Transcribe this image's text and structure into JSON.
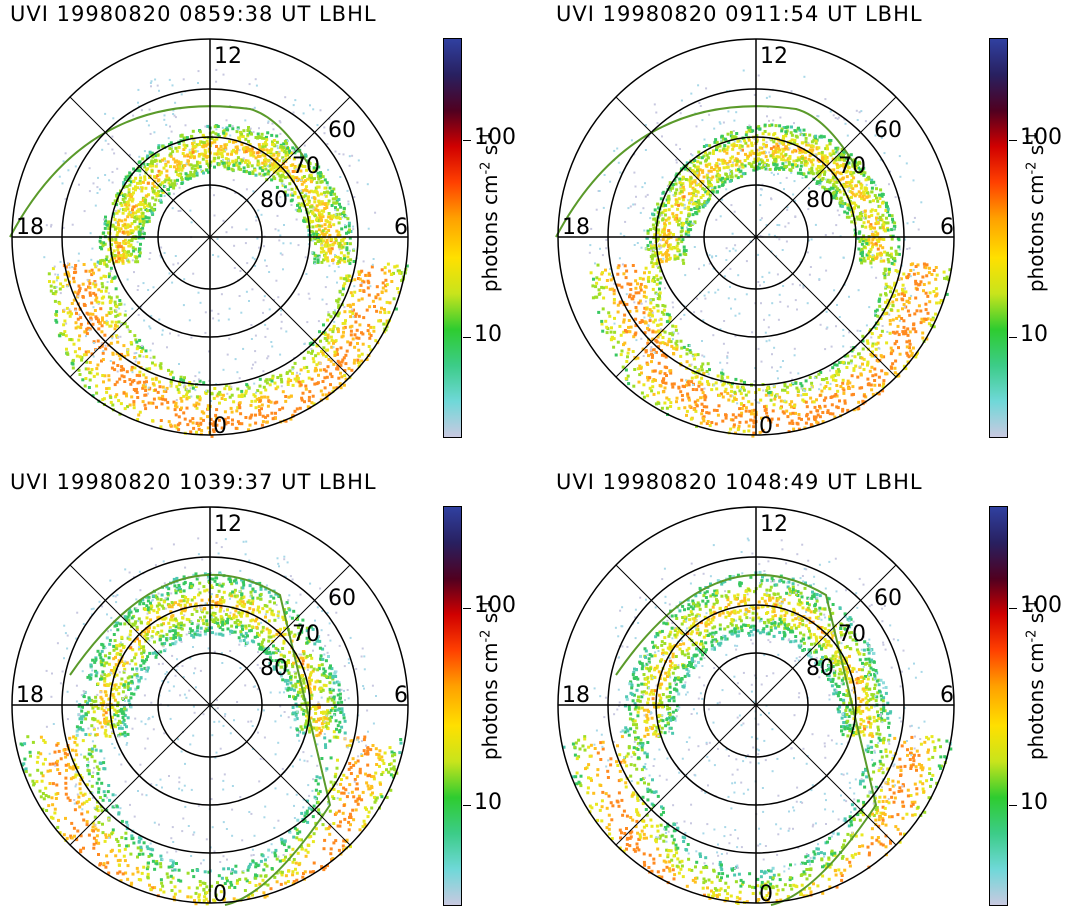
{
  "panels": [
    {
      "title": "UVI 19980820 0859:38 UT LBHL"
    },
    {
      "title": "UVI 19980820 0911:54 UT LBHL"
    },
    {
      "title": "UVI 19980820 1039:37 UT LBHL"
    },
    {
      "title": "UVI 19980820 1048:49 UT LBHL"
    }
  ],
  "grid": {
    "mlt_labels": {
      "top": "12",
      "right": "6",
      "bottom": "0",
      "left": "18"
    },
    "latitude_labels": [
      "60",
      "70",
      "80"
    ]
  },
  "colorbar": {
    "label_main": "photons cm",
    "label_exp1": "-2",
    "label_mid": " s",
    "label_exp2": "-1",
    "tick_10": "10",
    "tick_100": "100",
    "colors": [
      "#c9c9e0",
      "#6fd8d8",
      "#3ccc88",
      "#2ecc30",
      "#c8e41c",
      "#ffe000",
      "#ffa000",
      "#ff4000",
      "#d00000",
      "#500020",
      "#282060",
      "#3040a0"
    ]
  }
}
